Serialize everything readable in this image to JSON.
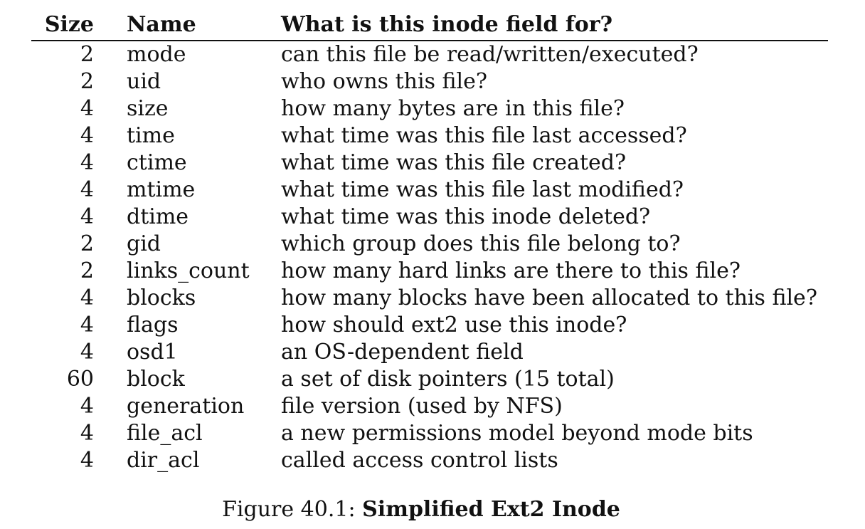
{
  "table": {
    "headers": {
      "size": "Size",
      "name": "Name",
      "purpose": "What is this inode field for?"
    },
    "rows": [
      {
        "size": "2",
        "name": "mode",
        "purpose": "can this file be read/written/executed?"
      },
      {
        "size": "2",
        "name": "uid",
        "purpose": "who owns this file?"
      },
      {
        "size": "4",
        "name": "size",
        "purpose": "how many bytes are in this file?"
      },
      {
        "size": "4",
        "name": "time",
        "purpose": "what time was this file last accessed?"
      },
      {
        "size": "4",
        "name": "ctime",
        "purpose": "what time was this file created?"
      },
      {
        "size": "4",
        "name": "mtime",
        "purpose": "what time was this file last modified?"
      },
      {
        "size": "4",
        "name": "dtime",
        "purpose": "what time was this inode deleted?"
      },
      {
        "size": "2",
        "name": "gid",
        "purpose": "which group does this file belong to?"
      },
      {
        "size": "2",
        "name": "links_count",
        "purpose": "how many hard links are there to this file?"
      },
      {
        "size": "4",
        "name": "blocks",
        "purpose": "how many blocks have been allocated to this file?"
      },
      {
        "size": "4",
        "name": "flags",
        "purpose": "how should ext2 use this inode?"
      },
      {
        "size": "4",
        "name": "osd1",
        "purpose": "an OS-dependent field"
      },
      {
        "size": "60",
        "name": "block",
        "purpose": "a set of disk pointers (15 total)"
      },
      {
        "size": "4",
        "name": "generation",
        "purpose": "file version (used by NFS)"
      },
      {
        "size": "4",
        "name": "file_acl",
        "purpose": "a new permissions model beyond mode bits"
      },
      {
        "size": "4",
        "name": "dir_acl",
        "purpose": "called access control lists"
      }
    ]
  },
  "caption": {
    "label": "Figure 40.1:",
    "title": "Simplified Ext2 Inode"
  }
}
